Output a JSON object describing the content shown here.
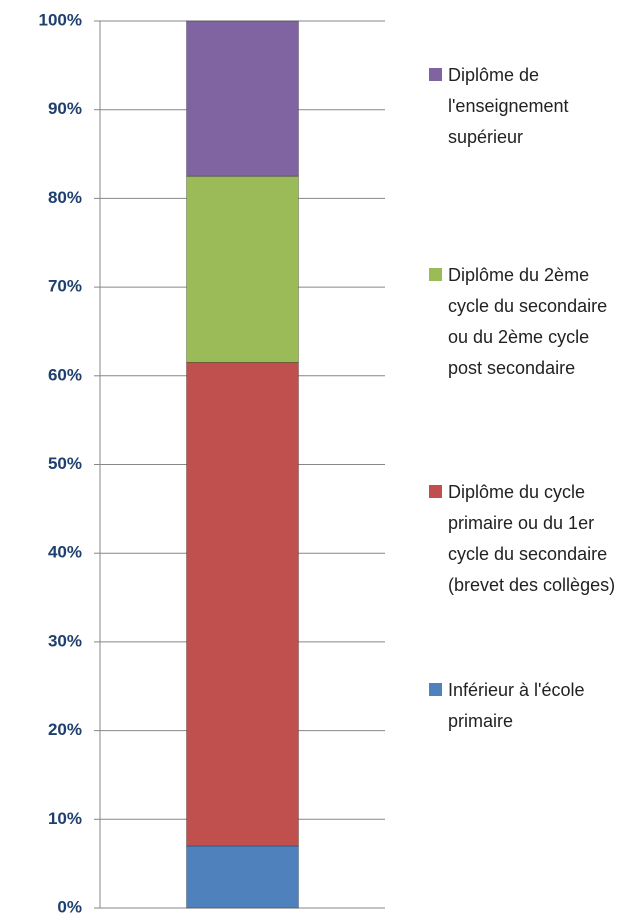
{
  "chart_data": {
    "type": "stacked_bar",
    "categories": [
      null
    ],
    "series": [
      {
        "name": "Inférieur à l'école primaire",
        "color": "#4f81bd",
        "values": [
          7
        ]
      },
      {
        "name": "Diplôme du cycle primaire ou du 1er cycle du secondaire (brevet des collèges)",
        "color": "#c0504d",
        "values": [
          54.5
        ]
      },
      {
        "name": "Diplôme du 2ème cycle du secondaire ou du 2ème cycle post secondaire",
        "color": "#9bbb59",
        "values": [
          21
        ]
      },
      {
        "name": "Diplôme de l'enseignement supérieur",
        "color": "#8064a2",
        "values": [
          17.5
        ]
      }
    ],
    "ylim": [
      0,
      100
    ],
    "yticks": [
      {
        "value": 0,
        "label": "0%"
      },
      {
        "value": 10,
        "label": "10%"
      },
      {
        "value": 20,
        "label": "20%"
      },
      {
        "value": 30,
        "label": "30%"
      },
      {
        "value": 40,
        "label": "40%"
      },
      {
        "value": 50,
        "label": "50%"
      },
      {
        "value": 60,
        "label": "60%"
      },
      {
        "value": 70,
        "label": "70%"
      },
      {
        "value": 80,
        "label": "80%"
      },
      {
        "value": 90,
        "label": "90%"
      },
      {
        "value": 100,
        "label": "100%"
      }
    ],
    "grid": true,
    "legend": "right"
  }
}
